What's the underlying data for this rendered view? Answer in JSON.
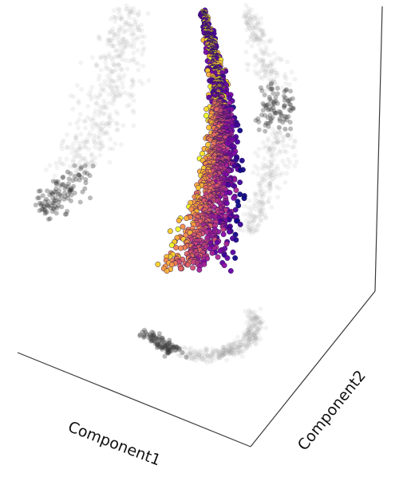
{
  "chart_data": {
    "type": "scatter",
    "projection": "3d",
    "title": "",
    "xlabel": "Component1",
    "ylabel": "Component2",
    "zlabel": "",
    "legend": "none",
    "grid": false,
    "colormap": "plasma",
    "shadow_color": "#3a3a3a",
    "marker_edge_color": "#2a1a55",
    "point_cloud": "dense 3D point cloud (curved crescent/horn shape) colored by a plasma colormap from dark purple to yellow; grey shadow projections on the three back panels"
  }
}
